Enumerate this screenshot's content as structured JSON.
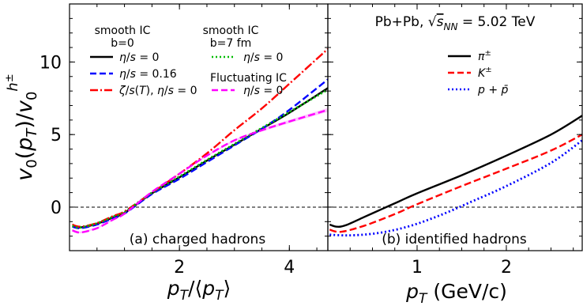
{
  "chart_data": [
    {
      "type": "line",
      "panel_label": "(a) charged hadrons",
      "xlabel": "p_T/⟨p_T⟩",
      "ylabel": "v_0(p_T)/v_0^{h^±}",
      "xlim": [
        0.0,
        4.7
      ],
      "ylim": [
        -3.0,
        14.0
      ],
      "xticks": [
        2,
        4
      ],
      "yticks": [
        0,
        5,
        10
      ],
      "zero_line": true,
      "legend_groups": [
        {
          "title": "smooth IC",
          "subtitle": "b=0",
          "entries": [
            "η/s = 0",
            "η/s = 0.16",
            "ζ/s(T), η/s = 0"
          ]
        },
        {
          "title": "smooth IC",
          "subtitle": "b=7 fm",
          "entries": [
            "η/s = 0"
          ]
        },
        {
          "title": "Fluctuating IC",
          "subtitle": "",
          "entries": [
            "η/s = 0"
          ]
        }
      ],
      "series": [
        {
          "key": "smooth_b0_eta0",
          "style": "solid",
          "color": "#000000",
          "x": [
            0.05,
            0.2,
            0.5,
            0.8,
            1.0,
            1.5,
            2.0,
            2.5,
            3.0,
            3.5,
            4.0,
            4.7
          ],
          "y": [
            -1.3,
            -1.4,
            -1.15,
            -0.7,
            -0.4,
            0.95,
            2.05,
            3.2,
            4.3,
            5.4,
            6.5,
            8.2
          ]
        },
        {
          "key": "smooth_b0_eta016",
          "style": "dashed",
          "color": "#0000ff",
          "x": [
            0.05,
            0.2,
            0.5,
            0.8,
            1.0,
            1.5,
            2.0,
            2.5,
            3.0,
            3.5,
            4.0,
            4.7
          ],
          "y": [
            -1.35,
            -1.45,
            -1.2,
            -0.75,
            -0.45,
            0.9,
            1.95,
            3.1,
            4.25,
            5.4,
            6.7,
            8.8
          ]
        },
        {
          "key": "smooth_b0_zeta",
          "style": "dashdot",
          "color": "#ff0000",
          "x": [
            0.05,
            0.2,
            0.5,
            0.8,
            1.0,
            1.5,
            2.0,
            2.5,
            3.0,
            3.5,
            4.0,
            4.7
          ],
          "y": [
            -1.2,
            -1.35,
            -1.1,
            -0.6,
            -0.3,
            1.0,
            2.3,
            3.7,
            5.3,
            6.8,
            8.5,
            10.9
          ]
        },
        {
          "key": "smooth_b7_eta0",
          "style": "dotted",
          "color": "#00bb00",
          "x": [
            0.05,
            0.2,
            0.5,
            0.8,
            1.0,
            1.5,
            2.0,
            2.5,
            3.0,
            3.5,
            4.0,
            4.7
          ],
          "y": [
            -1.3,
            -1.4,
            -1.12,
            -0.65,
            -0.35,
            1.0,
            2.1,
            3.25,
            4.35,
            5.45,
            6.55,
            8.1
          ]
        },
        {
          "key": "fluct_eta0",
          "style": "dashed",
          "color": "#ff00ff",
          "band": true,
          "x": [
            0.05,
            0.2,
            0.5,
            0.8,
            1.0,
            1.5,
            2.0,
            2.5,
            3.0,
            3.5,
            4.0,
            4.7
          ],
          "y": [
            -1.6,
            -1.75,
            -1.45,
            -0.85,
            -0.45,
            1.05,
            2.3,
            3.55,
            4.6,
            5.3,
            5.9,
            6.7
          ]
        }
      ]
    },
    {
      "type": "line",
      "panel_label": "(b) identified hadrons",
      "title": "Pb+Pb, √s_NN = 5.02 TeV",
      "xlabel": "p_T (GeV/c)",
      "xlim": [
        0.0,
        2.85
      ],
      "ylim": [
        -3.0,
        14.0
      ],
      "xticks": [
        1,
        2
      ],
      "zero_line": true,
      "series": [
        {
          "name": "π±",
          "style": "solid",
          "color": "#000000",
          "x": [
            0.02,
            0.1,
            0.2,
            0.4,
            0.6,
            0.8,
            1.0,
            1.5,
            2.0,
            2.5,
            2.85
          ],
          "y": [
            -1.2,
            -1.35,
            -1.25,
            -0.7,
            -0.15,
            0.4,
            0.95,
            2.2,
            3.55,
            5.0,
            6.3
          ]
        },
        {
          "name": "K±",
          "style": "dashed",
          "color": "#ff0000",
          "x": [
            0.02,
            0.1,
            0.2,
            0.4,
            0.6,
            0.8,
            1.0,
            1.5,
            2.0,
            2.5,
            2.85
          ],
          "y": [
            -1.55,
            -1.7,
            -1.65,
            -1.3,
            -0.85,
            -0.35,
            0.2,
            1.45,
            2.65,
            3.9,
            5.0
          ]
        },
        {
          "name": "p + p̄",
          "style": "dotted",
          "color": "#0000ff",
          "x": [
            0.02,
            0.2,
            0.4,
            0.6,
            0.8,
            1.0,
            1.2,
            1.4,
            1.6,
            2.0,
            2.5,
            2.85
          ],
          "y": [
            -1.9,
            -1.95,
            -1.9,
            -1.75,
            -1.5,
            -1.15,
            -0.7,
            -0.2,
            0.35,
            1.45,
            3.05,
            4.6
          ]
        }
      ]
    }
  ]
}
